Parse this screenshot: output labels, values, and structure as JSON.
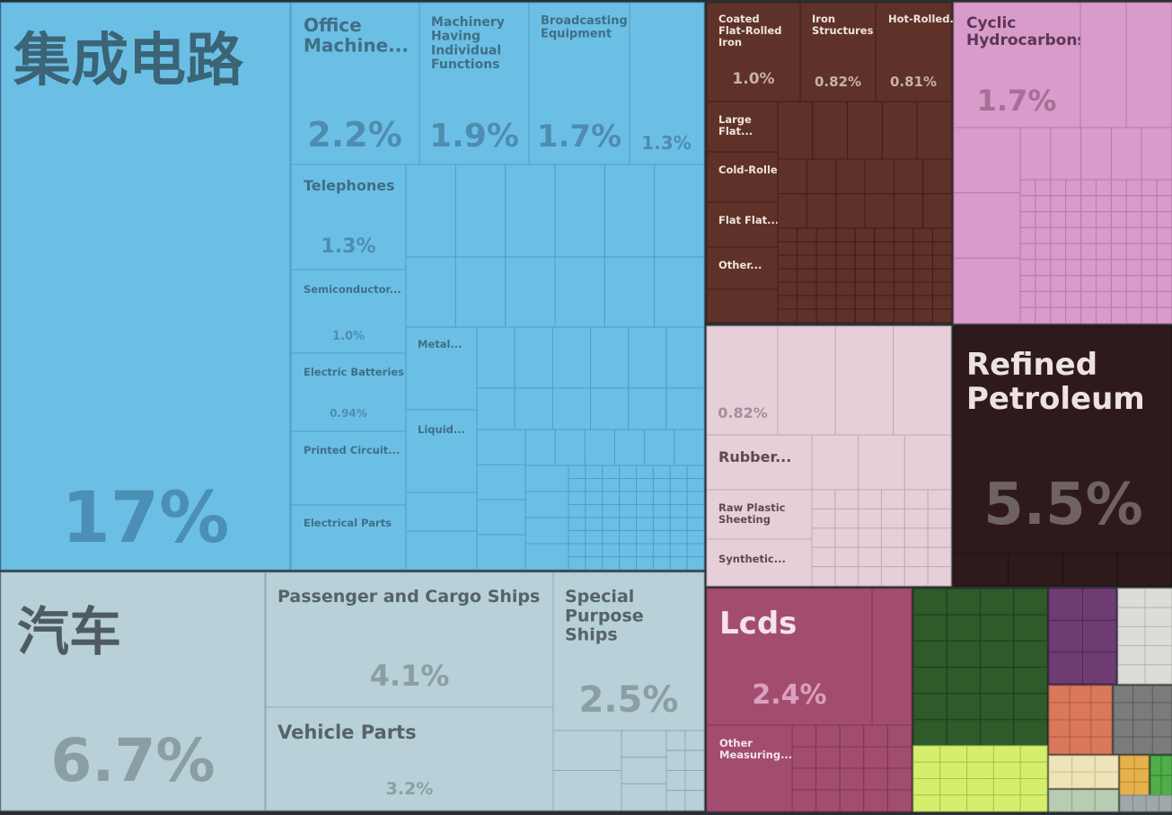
{
  "chart_data": {
    "type": "treemap",
    "title": "",
    "colors": {
      "machines": "#6bbfe5",
      "machines_edge": "#4f9ec4",
      "transport": "#b8d0d7",
      "transport_edge": "#8fa9b1",
      "metals": "#5e3228",
      "metals_edge": "#3d1f18",
      "chemicals": "#d99bca",
      "chemicals_edge": "#b87aa8",
      "plastics": "#e6cfd8",
      "plastics_edge": "#c3aab4",
      "mineral": "#2e1a1a",
      "mineral_edge": "#1c0f0f",
      "instruments": "#a24d6f",
      "instruments_edge": "#7d3554",
      "textiles": "#2f5a2a",
      "textiles_edge": "#1d3d1a",
      "footwear_yellow": "#d5ef6d",
      "misc_purple": "#6f3b73",
      "misc_grey_light": "#dcdcd8",
      "misc_orange": "#d9785a",
      "misc_grey": "#7a7c7a",
      "misc_cream": "#efe3b8",
      "misc_gold": "#e6b14c",
      "misc_green": "#4fae4a",
      "misc_sage": "#b7ccb1"
    },
    "items": [
      {
        "id": "ic",
        "label": "集成电路",
        "value": "17%",
        "group": "machines"
      },
      {
        "id": "office",
        "label": "Office Machine...",
        "value": "2.2%",
        "group": "machines"
      },
      {
        "id": "machinery",
        "label": "Machinery Having Individual Functions",
        "value": "1.9%",
        "group": "machines"
      },
      {
        "id": "broadcast",
        "label": "Broadcasting Equipment",
        "value": "1.7%",
        "group": "machines"
      },
      {
        "id": "m_unlabeled",
        "label": "",
        "value": "1.3%",
        "group": "machines"
      },
      {
        "id": "telephones",
        "label": "Telephones",
        "value": "1.3%",
        "group": "machines"
      },
      {
        "id": "semis",
        "label": "Semiconductor...",
        "value": "1.0%",
        "group": "machines"
      },
      {
        "id": "batteries",
        "label": "Electric Batteries",
        "value": "0.94%",
        "group": "machines"
      },
      {
        "id": "pcb",
        "label": "Printed Circuit...",
        "value": "",
        "group": "machines"
      },
      {
        "id": "elec_parts",
        "label": "Electrical Parts",
        "value": "",
        "group": "machines"
      },
      {
        "id": "metal",
        "label": "Metal...",
        "value": "",
        "group": "machines"
      },
      {
        "id": "liquid",
        "label": "Liquid...",
        "value": "",
        "group": "machines"
      },
      {
        "id": "cars",
        "label": "汽车",
        "value": "6.7%",
        "group": "transport"
      },
      {
        "id": "ships",
        "label": "Passenger and Cargo Ships",
        "value": "4.1%",
        "group": "transport"
      },
      {
        "id": "special_ships",
        "label": "Special Purpose Ships",
        "value": "2.5%",
        "group": "transport"
      },
      {
        "id": "vehicle_parts",
        "label": "Vehicle Parts",
        "value": "3.2%",
        "group": "transport"
      },
      {
        "id": "coated",
        "label": "Coated Flat-Rolled Iron",
        "value": "1.0%",
        "group": "metals"
      },
      {
        "id": "iron_struct",
        "label": "Iron Structures",
        "value": "0.82%",
        "group": "metals"
      },
      {
        "id": "hot_rolled",
        "label": "Hot-Rolled...",
        "value": "0.81%",
        "group": "metals"
      },
      {
        "id": "large_flat",
        "label": "Large Flat...",
        "value": "",
        "group": "metals"
      },
      {
        "id": "cold_rolled",
        "label": "Cold-Rolled...",
        "value": "",
        "group": "metals"
      },
      {
        "id": "flat_flat",
        "label": "Flat Flat...",
        "value": "",
        "group": "metals"
      },
      {
        "id": "other_metal",
        "label": "Other...",
        "value": "",
        "group": "metals"
      },
      {
        "id": "cyclic",
        "label": "Cyclic Hydrocarbons",
        "value": "1.7%",
        "group": "chemicals"
      },
      {
        "id": "p_unlabeled",
        "label": "",
        "value": "0.82%",
        "group": "plastics"
      },
      {
        "id": "rubber",
        "label": "Rubber...",
        "value": "",
        "group": "plastics"
      },
      {
        "id": "raw_plastic",
        "label": "Raw Plastic Sheeting",
        "value": "",
        "group": "plastics"
      },
      {
        "id": "synthetic",
        "label": "Synthetic...",
        "value": "",
        "group": "plastics"
      },
      {
        "id": "refined",
        "label": "Refined Petroleum",
        "value": "5.5%",
        "group": "mineral"
      },
      {
        "id": "lcds",
        "label": "Lcds",
        "value": "2.4%",
        "group": "instruments"
      },
      {
        "id": "other_measuring",
        "label": "Other Measuring...",
        "value": "",
        "group": "instruments"
      }
    ]
  }
}
